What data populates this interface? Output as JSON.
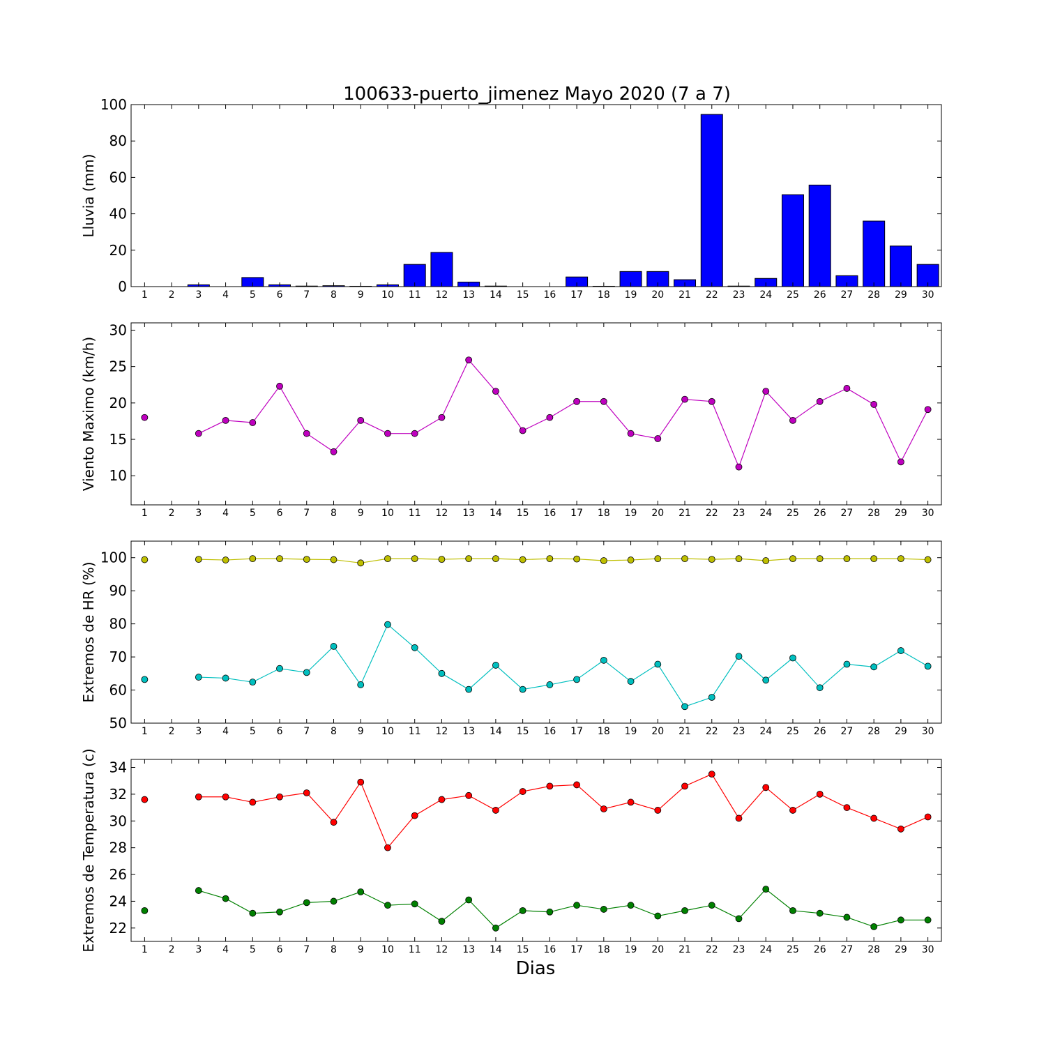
{
  "figure": {
    "title": "100633-puerto_jimenez Mayo 2020  (7 a 7)",
    "xlabel": "Dias"
  },
  "chart_data": [
    {
      "type": "bar",
      "ylabel": "Lluvia (mm)",
      "ylim": [
        0,
        100
      ],
      "yticks": [
        0,
        20,
        40,
        60,
        80,
        100
      ],
      "categories": [
        "1",
        "2",
        "3",
        "4",
        "5",
        "6",
        "7",
        "8",
        "9",
        "10",
        "11",
        "12",
        "13",
        "14",
        "15",
        "16",
        "17",
        "18",
        "19",
        "20",
        "21",
        "22",
        "23",
        "24",
        "25",
        "26",
        "27",
        "28",
        "29",
        "30"
      ],
      "series": [
        {
          "color": "#0000ff",
          "values": [
            0.0,
            0.0,
            1.0,
            0.0,
            5.0,
            1.0,
            0.3,
            0.5,
            0.2,
            1.0,
            12.2,
            18.8,
            2.5,
            0.3,
            0.0,
            0.0,
            5.3,
            0.2,
            8.3,
            8.3,
            3.8,
            94.6,
            0.3,
            4.5,
            50.5,
            55.8,
            6.0,
            36.0,
            22.3,
            12.2
          ]
        }
      ],
      "grid": false
    },
    {
      "type": "line",
      "ylabel": "Viento Maximo (km/h)",
      "ylim": [
        6,
        31
      ],
      "yticks": [
        10,
        15,
        20,
        25,
        30
      ],
      "x": [
        1,
        2,
        3,
        4,
        5,
        6,
        7,
        8,
        9,
        10,
        11,
        12,
        13,
        14,
        15,
        16,
        17,
        18,
        19,
        20,
        21,
        22,
        23,
        24,
        25,
        26,
        27,
        28,
        29,
        30
      ],
      "series": [
        {
          "color": "#bf00bf",
          "values": [
            18.0,
            null,
            15.8,
            17.6,
            17.3,
            22.3,
            15.8,
            13.3,
            17.6,
            15.8,
            15.8,
            18.0,
            25.9,
            21.6,
            16.2,
            18.0,
            20.2,
            20.2,
            15.8,
            15.1,
            20.5,
            20.2,
            11.2,
            21.6,
            17.6,
            20.2,
            22.0,
            19.8,
            11.9,
            19.1
          ]
        }
      ],
      "grid": false
    },
    {
      "type": "line",
      "ylabel": "Extremos de HR (%)",
      "ylim": [
        50,
        105
      ],
      "yticks": [
        50,
        60,
        70,
        80,
        90,
        100
      ],
      "x": [
        1,
        2,
        3,
        4,
        5,
        6,
        7,
        8,
        9,
        10,
        11,
        12,
        13,
        14,
        15,
        16,
        17,
        18,
        19,
        20,
        21,
        22,
        23,
        24,
        25,
        26,
        27,
        28,
        29,
        30
      ],
      "series": [
        {
          "color": "#bfbf00",
          "values": [
            99.4,
            null,
            99.5,
            99.3,
            99.7,
            99.7,
            99.5,
            99.4,
            98.4,
            99.7,
            99.7,
            99.5,
            99.7,
            99.7,
            99.4,
            99.7,
            99.6,
            99.1,
            99.3,
            99.7,
            99.7,
            99.5,
            99.7,
            99.1,
            99.7,
            99.7,
            99.7,
            99.7,
            99.7,
            99.4
          ]
        },
        {
          "color": "#00bfbf",
          "values": [
            63.2,
            null,
            63.9,
            63.6,
            62.4,
            66.5,
            65.3,
            73.2,
            61.6,
            79.8,
            72.8,
            65.0,
            60.2,
            67.5,
            60.2,
            61.6,
            63.2,
            69.0,
            62.6,
            67.8,
            55.0,
            57.8,
            70.2,
            63.0,
            69.7,
            60.7,
            67.8,
            67.0,
            71.9,
            67.2
          ]
        }
      ],
      "grid": false
    },
    {
      "type": "line",
      "ylabel": "Extremos de Temperatura (c)",
      "ylim": [
        21,
        34.6
      ],
      "yticks": [
        22,
        24,
        26,
        28,
        30,
        32,
        34
      ],
      "x": [
        1,
        2,
        3,
        4,
        5,
        6,
        7,
        8,
        9,
        10,
        11,
        12,
        13,
        14,
        15,
        16,
        17,
        18,
        19,
        20,
        21,
        22,
        23,
        24,
        25,
        26,
        27,
        28,
        29,
        30
      ],
      "series": [
        {
          "color": "#ff0000",
          "values": [
            31.6,
            null,
            31.8,
            31.8,
            31.4,
            31.8,
            32.1,
            29.9,
            32.9,
            28.0,
            30.4,
            31.6,
            31.9,
            30.8,
            32.2,
            32.6,
            32.7,
            30.9,
            31.4,
            30.8,
            32.6,
            33.5,
            30.2,
            32.5,
            30.8,
            32.0,
            31.0,
            30.2,
            29.4,
            30.3
          ]
        },
        {
          "color": "#008000",
          "values": [
            23.3,
            null,
            24.8,
            24.2,
            23.1,
            23.2,
            23.9,
            24.0,
            24.7,
            23.7,
            23.8,
            22.5,
            24.1,
            22.0,
            23.3,
            23.2,
            23.7,
            23.4,
            23.7,
            22.9,
            23.3,
            23.7,
            22.7,
            24.9,
            23.3,
            23.1,
            22.8,
            22.1,
            22.6,
            22.6
          ]
        }
      ],
      "grid": false
    }
  ]
}
